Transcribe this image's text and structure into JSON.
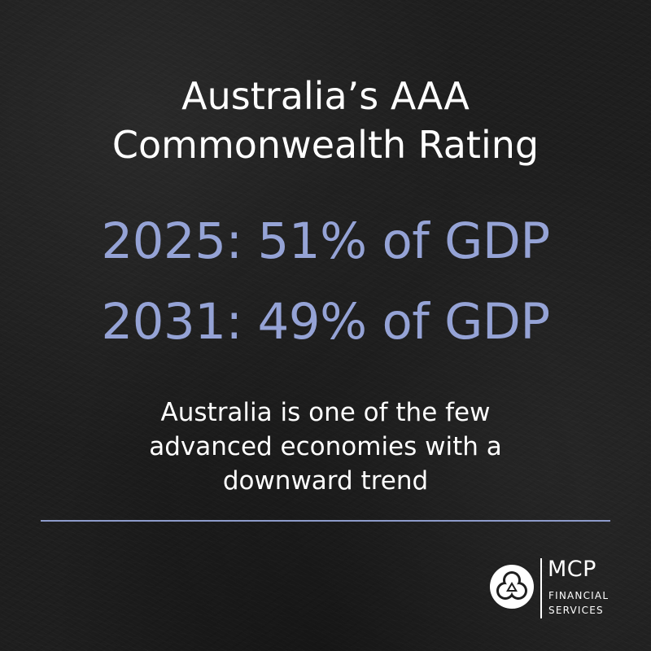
{
  "title": {
    "line1": "Australia’s AAA",
    "line2": "Commonwealth Rating"
  },
  "stats": [
    {
      "text": "2025: 51% of GDP"
    },
    {
      "text": "2031: 49% of GDP"
    }
  ],
  "note": {
    "line1": "Australia is one of the few",
    "line2": "advanced economies with a",
    "line3": "downward trend"
  },
  "logo": {
    "name": "MCP",
    "sub_line1": "FINANCIAL",
    "sub_line2": "SERVICES",
    "icon": "three-petal-knot-icon"
  },
  "colors": {
    "background": "#1e1e1e",
    "heading": "#ffffff",
    "accent": "#95a3d6",
    "divider": "#8e9ccb"
  }
}
